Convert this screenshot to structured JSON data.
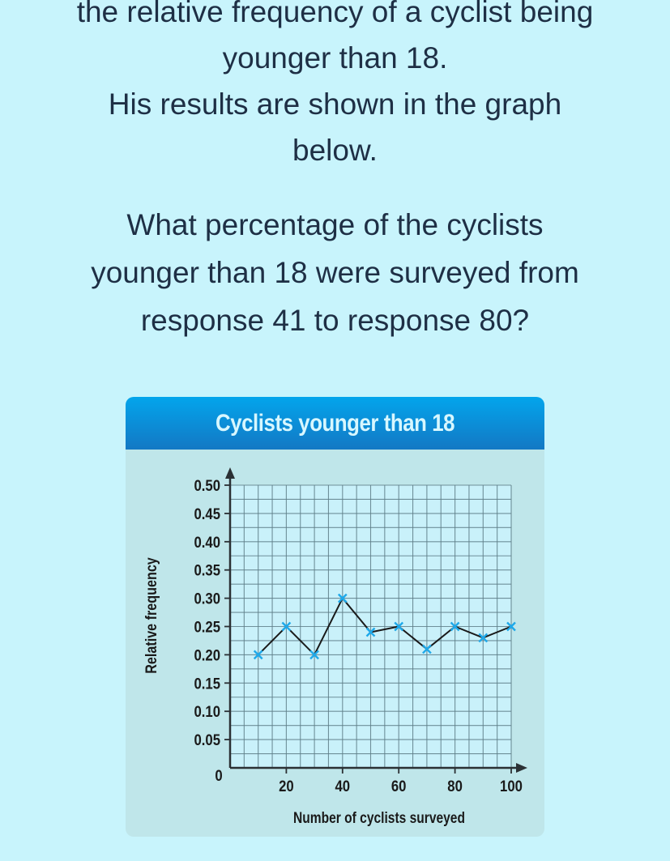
{
  "intro": {
    "lines": [
      "the relative frequency of a cyclist being",
      "younger than 18.",
      "His results are shown in the graph",
      "below."
    ]
  },
  "question": {
    "lines": [
      "What percentage of the cyclists",
      "younger than 18 were surveyed from",
      "response 41 to response 80?"
    ]
  },
  "colors": {
    "page_bg": "#c8f4fc",
    "panel_bg": "#bfe6ea",
    "header_top": "#03a5ec",
    "header_bottom": "#1378c4",
    "plot_bg": "#c9f1fa",
    "grid": "#5f7f88",
    "line": "#1a1a1a",
    "marker": "#1ea9ea"
  },
  "chart_data": {
    "type": "line",
    "title": "Cyclists younger than 18",
    "xlabel": "Number of cyclists surveyed",
    "ylabel": "Relative frequency",
    "x": [
      10,
      20,
      30,
      40,
      50,
      60,
      70,
      80,
      90,
      100
    ],
    "values": [
      0.2,
      0.25,
      0.2,
      0.3,
      0.24,
      0.25,
      0.21,
      0.25,
      0.23,
      0.25
    ],
    "xlim": [
      0,
      100
    ],
    "ylim": [
      0,
      0.5
    ],
    "x_ticks": [
      "0",
      "20",
      "40",
      "60",
      "80",
      "100"
    ],
    "y_ticks": [
      "0.05",
      "0.10",
      "0.15",
      "0.20",
      "0.25",
      "0.30",
      "0.35",
      "0.40",
      "0.45",
      "0.50"
    ],
    "grid": true,
    "marker": "x",
    "legend": null
  }
}
